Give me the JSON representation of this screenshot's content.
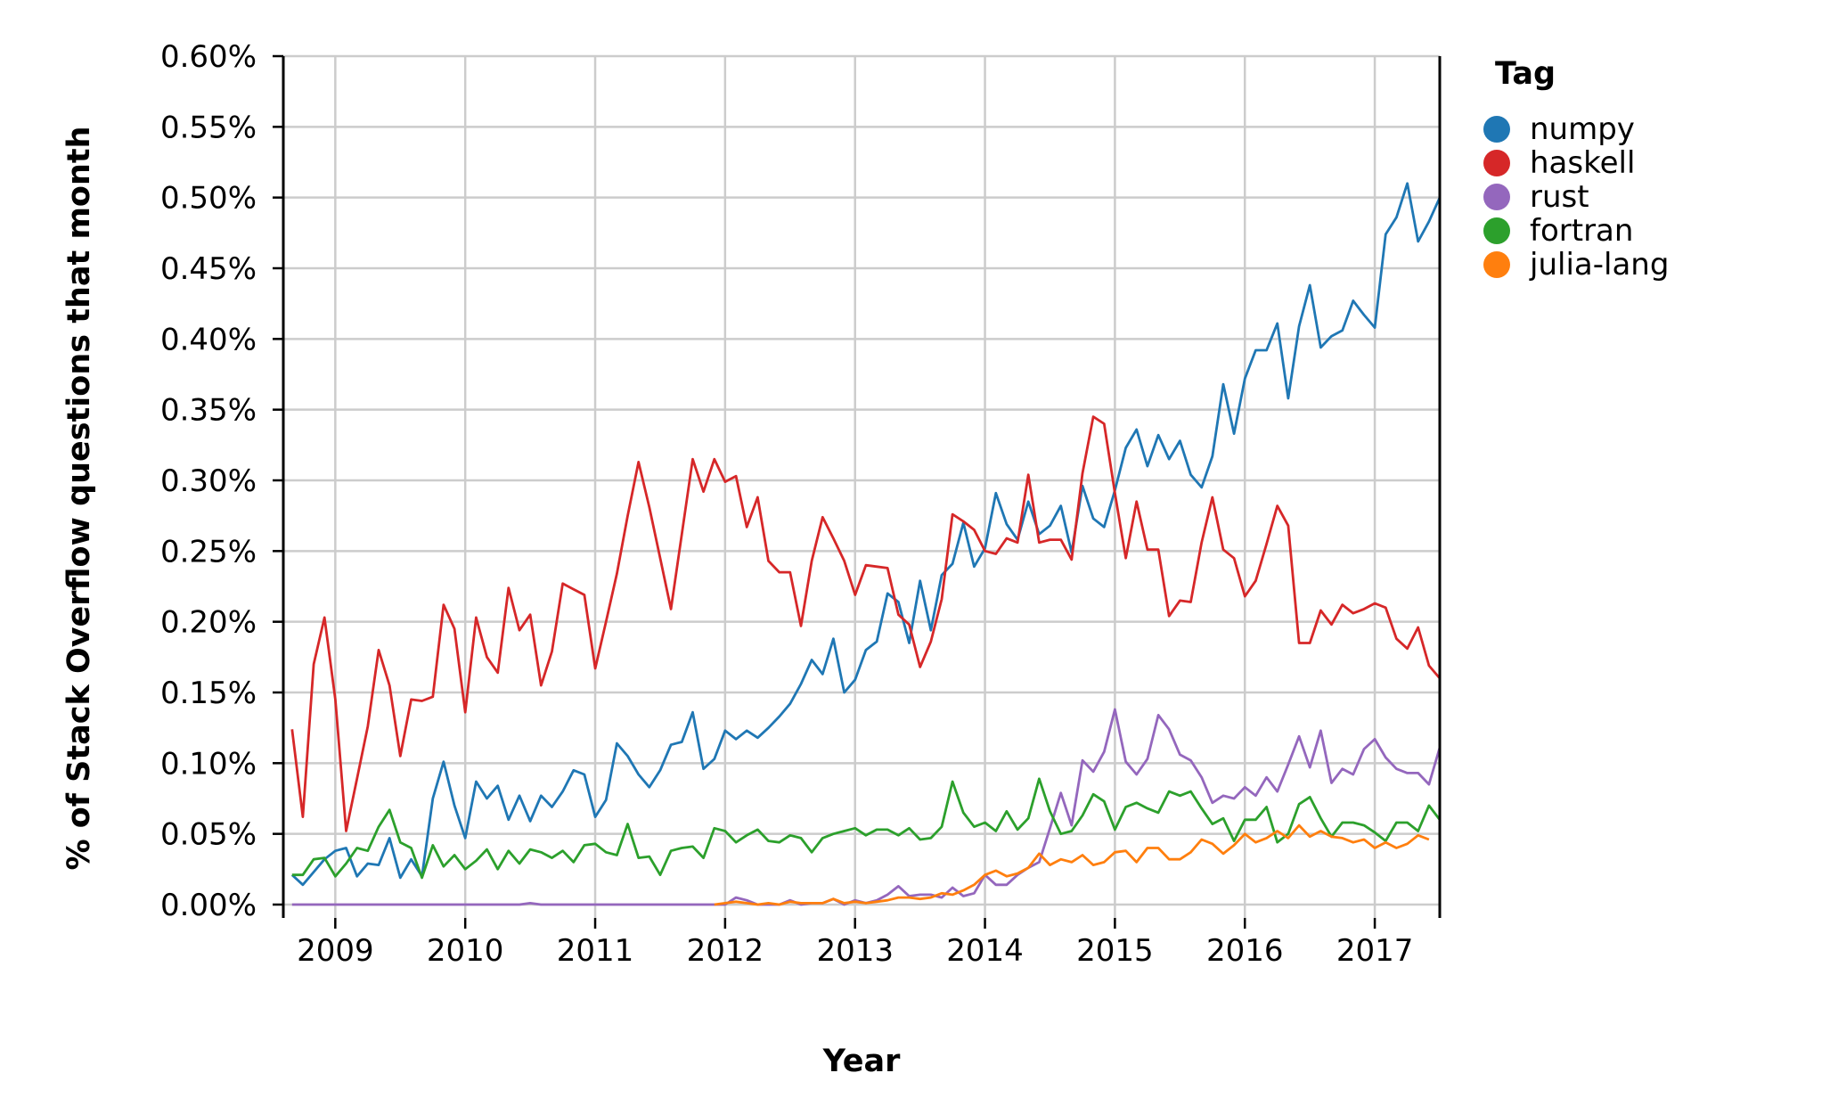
{
  "chart_data": {
    "type": "line",
    "xlabel": "Year",
    "ylabel": "% of Stack Overflow questions that month",
    "x_ticks": [
      "2009",
      "2010",
      "2011",
      "2012",
      "2013",
      "2014",
      "2015",
      "2016",
      "2017"
    ],
    "x_tick_values": [
      2009,
      2010,
      2011,
      2012,
      2013,
      2014,
      2015,
      2016,
      2017
    ],
    "y_ticks": [
      "0.00%",
      "0.05%",
      "0.10%",
      "0.15%",
      "0.20%",
      "0.25%",
      "0.30%",
      "0.35%",
      "0.40%",
      "0.45%",
      "0.50%",
      "0.55%",
      "0.60%"
    ],
    "y_tick_values": [
      0,
      0.05,
      0.1,
      0.15,
      0.2,
      0.25,
      0.3,
      0.35,
      0.4,
      0.45,
      0.5,
      0.55,
      0.6
    ],
    "xlim": [
      2008.6,
      2017.5
    ],
    "ylim": [
      0,
      0.6
    ],
    "grid": true,
    "legend": {
      "title": "Tag",
      "placement": "right"
    },
    "series": [
      {
        "name": "numpy",
        "color": "#1f77b4",
        "x0": 2008.667,
        "values": [
          0.021,
          0.014,
          0.023,
          0.032,
          0.038,
          0.04,
          0.02,
          0.029,
          0.028,
          0.047,
          0.019,
          0.032,
          0.02,
          0.075,
          0.101,
          0.07,
          0.047,
          0.087,
          0.075,
          0.084,
          0.06,
          0.077,
          0.059,
          0.077,
          0.069,
          0.08,
          0.095,
          0.092,
          0.062,
          0.074,
          0.114,
          0.105,
          0.092,
          0.083,
          0.095,
          0.113,
          0.115,
          0.136,
          0.096,
          0.103,
          0.123,
          0.117,
          0.123,
          0.118,
          0.125,
          0.133,
          0.142,
          0.156,
          0.173,
          0.163,
          0.188,
          0.15,
          0.159,
          0.18,
          0.186,
          0.22,
          0.214,
          0.185,
          0.229,
          0.194,
          0.233,
          0.241,
          0.27,
          0.239,
          0.252,
          0.291,
          0.269,
          0.258,
          0.285,
          0.262,
          0.268,
          0.282,
          0.249,
          0.296,
          0.273,
          0.267,
          0.293,
          0.323,
          0.336,
          0.31,
          0.332,
          0.315,
          0.328,
          0.304,
          0.295,
          0.317,
          0.368,
          0.333,
          0.372,
          0.392,
          0.392,
          0.411,
          0.358,
          0.409,
          0.438,
          0.394,
          0.402,
          0.406,
          0.427,
          0.417,
          0.408,
          0.474,
          0.486,
          0.51,
          0.469,
          0.483,
          0.5
        ]
      },
      {
        "name": "haskell",
        "color": "#d62728",
        "x0": 2008.667,
        "values": [
          0.124,
          0.062,
          0.17,
          0.203,
          0.145,
          0.052,
          0.089,
          0.126,
          0.18,
          0.155,
          0.105,
          0.145,
          0.144,
          0.147,
          0.212,
          0.195,
          0.136,
          0.203,
          0.175,
          0.164,
          0.224,
          0.194,
          0.205,
          0.155,
          0.179,
          0.227,
          0.223,
          0.219,
          0.167,
          0.2,
          0.234,
          0.275,
          0.313,
          0.281,
          0.245,
          0.209,
          0.262,
          0.315,
          0.292,
          0.315,
          0.299,
          0.303,
          0.267,
          0.288,
          0.243,
          0.235,
          0.235,
          0.197,
          0.243,
          0.274,
          0.259,
          0.243,
          0.219,
          0.24,
          0.239,
          0.238,
          0.205,
          0.198,
          0.168,
          0.186,
          0.216,
          0.276,
          0.271,
          0.265,
          0.25,
          0.248,
          0.259,
          0.256,
          0.304,
          0.256,
          0.258,
          0.258,
          0.244,
          0.305,
          0.345,
          0.34,
          0.291,
          0.245,
          0.285,
          0.251,
          0.251,
          0.204,
          0.215,
          0.214,
          0.256,
          0.288,
          0.251,
          0.245,
          0.218,
          0.229,
          0.255,
          0.282,
          0.268,
          0.185,
          0.185,
          0.208,
          0.198,
          0.212,
          0.206,
          0.209,
          0.213,
          0.21,
          0.188,
          0.181,
          0.196,
          0.169,
          0.16
        ]
      },
      {
        "name": "rust",
        "color": "#9467bd",
        "x0": 2008.667,
        "values": [
          0.0,
          0.0,
          0.0,
          0.0,
          0.0,
          0.0,
          0.0,
          0.0,
          0.0,
          0.0,
          0.0,
          0.0,
          0.0,
          0.0,
          0.0,
          0.0,
          0.0,
          0.0,
          0.0,
          0.0,
          0.0,
          0.0,
          0.001,
          0.0,
          0.0,
          0.0,
          0.0,
          0.0,
          0.0,
          0.0,
          0.0,
          0.0,
          0.0,
          0.0,
          0.0,
          0.0,
          0.0,
          0.0,
          0.0,
          0.0,
          0.0,
          0.005,
          0.003,
          0.0,
          0.0,
          0.0,
          0.003,
          0.0,
          0.001,
          0.001,
          0.004,
          0.0,
          0.003,
          0.001,
          0.003,
          0.007,
          0.013,
          0.006,
          0.007,
          0.007,
          0.005,
          0.012,
          0.006,
          0.008,
          0.021,
          0.014,
          0.014,
          0.021,
          0.026,
          0.03,
          0.054,
          0.079,
          0.056,
          0.102,
          0.094,
          0.108,
          0.138,
          0.101,
          0.092,
          0.103,
          0.134,
          0.124,
          0.106,
          0.102,
          0.09,
          0.072,
          0.077,
          0.075,
          0.083,
          0.077,
          0.09,
          0.08,
          0.099,
          0.119,
          0.097,
          0.123,
          0.086,
          0.096,
          0.092,
          0.11,
          0.117,
          0.104,
          0.096,
          0.093,
          0.093,
          0.085,
          0.111
        ]
      },
      {
        "name": "fortran",
        "color": "#2ca02c",
        "x0": 2008.667,
        "values": [
          0.021,
          0.021,
          0.032,
          0.033,
          0.02,
          0.029,
          0.04,
          0.038,
          0.055,
          0.067,
          0.044,
          0.04,
          0.019,
          0.042,
          0.027,
          0.035,
          0.025,
          0.031,
          0.039,
          0.025,
          0.038,
          0.029,
          0.039,
          0.037,
          0.033,
          0.038,
          0.03,
          0.042,
          0.043,
          0.037,
          0.035,
          0.057,
          0.033,
          0.034,
          0.021,
          0.038,
          0.04,
          0.041,
          0.033,
          0.054,
          0.052,
          0.044,
          0.049,
          0.053,
          0.045,
          0.044,
          0.049,
          0.047,
          0.037,
          0.047,
          0.05,
          0.052,
          0.054,
          0.049,
          0.053,
          0.053,
          0.049,
          0.054,
          0.046,
          0.047,
          0.055,
          0.087,
          0.065,
          0.055,
          0.058,
          0.052,
          0.066,
          0.053,
          0.061,
          0.089,
          0.066,
          0.05,
          0.052,
          0.063,
          0.078,
          0.073,
          0.053,
          0.069,
          0.072,
          0.068,
          0.065,
          0.08,
          0.077,
          0.08,
          0.068,
          0.057,
          0.061,
          0.045,
          0.06,
          0.06,
          0.069,
          0.044,
          0.05,
          0.071,
          0.076,
          0.061,
          0.048,
          0.058,
          0.058,
          0.056,
          0.051,
          0.045,
          0.058,
          0.058,
          0.052,
          0.07,
          0.06
        ]
      },
      {
        "name": "julia-lang",
        "color": "#ff7f0e",
        "x0": 2011.917,
        "values": [
          0.0,
          0.001,
          0.002,
          0.001,
          0.0,
          0.001,
          0.0,
          0.002,
          0.001,
          0.001,
          0.001,
          0.004,
          0.001,
          0.002,
          0.001,
          0.002,
          0.003,
          0.005,
          0.005,
          0.004,
          0.005,
          0.008,
          0.007,
          0.01,
          0.014,
          0.021,
          0.024,
          0.02,
          0.022,
          0.026,
          0.036,
          0.028,
          0.032,
          0.03,
          0.035,
          0.028,
          0.03,
          0.037,
          0.038,
          0.03,
          0.04,
          0.04,
          0.032,
          0.032,
          0.037,
          0.046,
          0.043,
          0.036,
          0.042,
          0.05,
          0.044,
          0.047,
          0.052,
          0.047,
          0.056,
          0.048,
          0.052,
          0.048,
          0.047,
          0.044,
          0.046,
          0.04,
          0.044,
          0.04,
          0.043,
          0.049,
          0.046
        ]
      }
    ]
  }
}
